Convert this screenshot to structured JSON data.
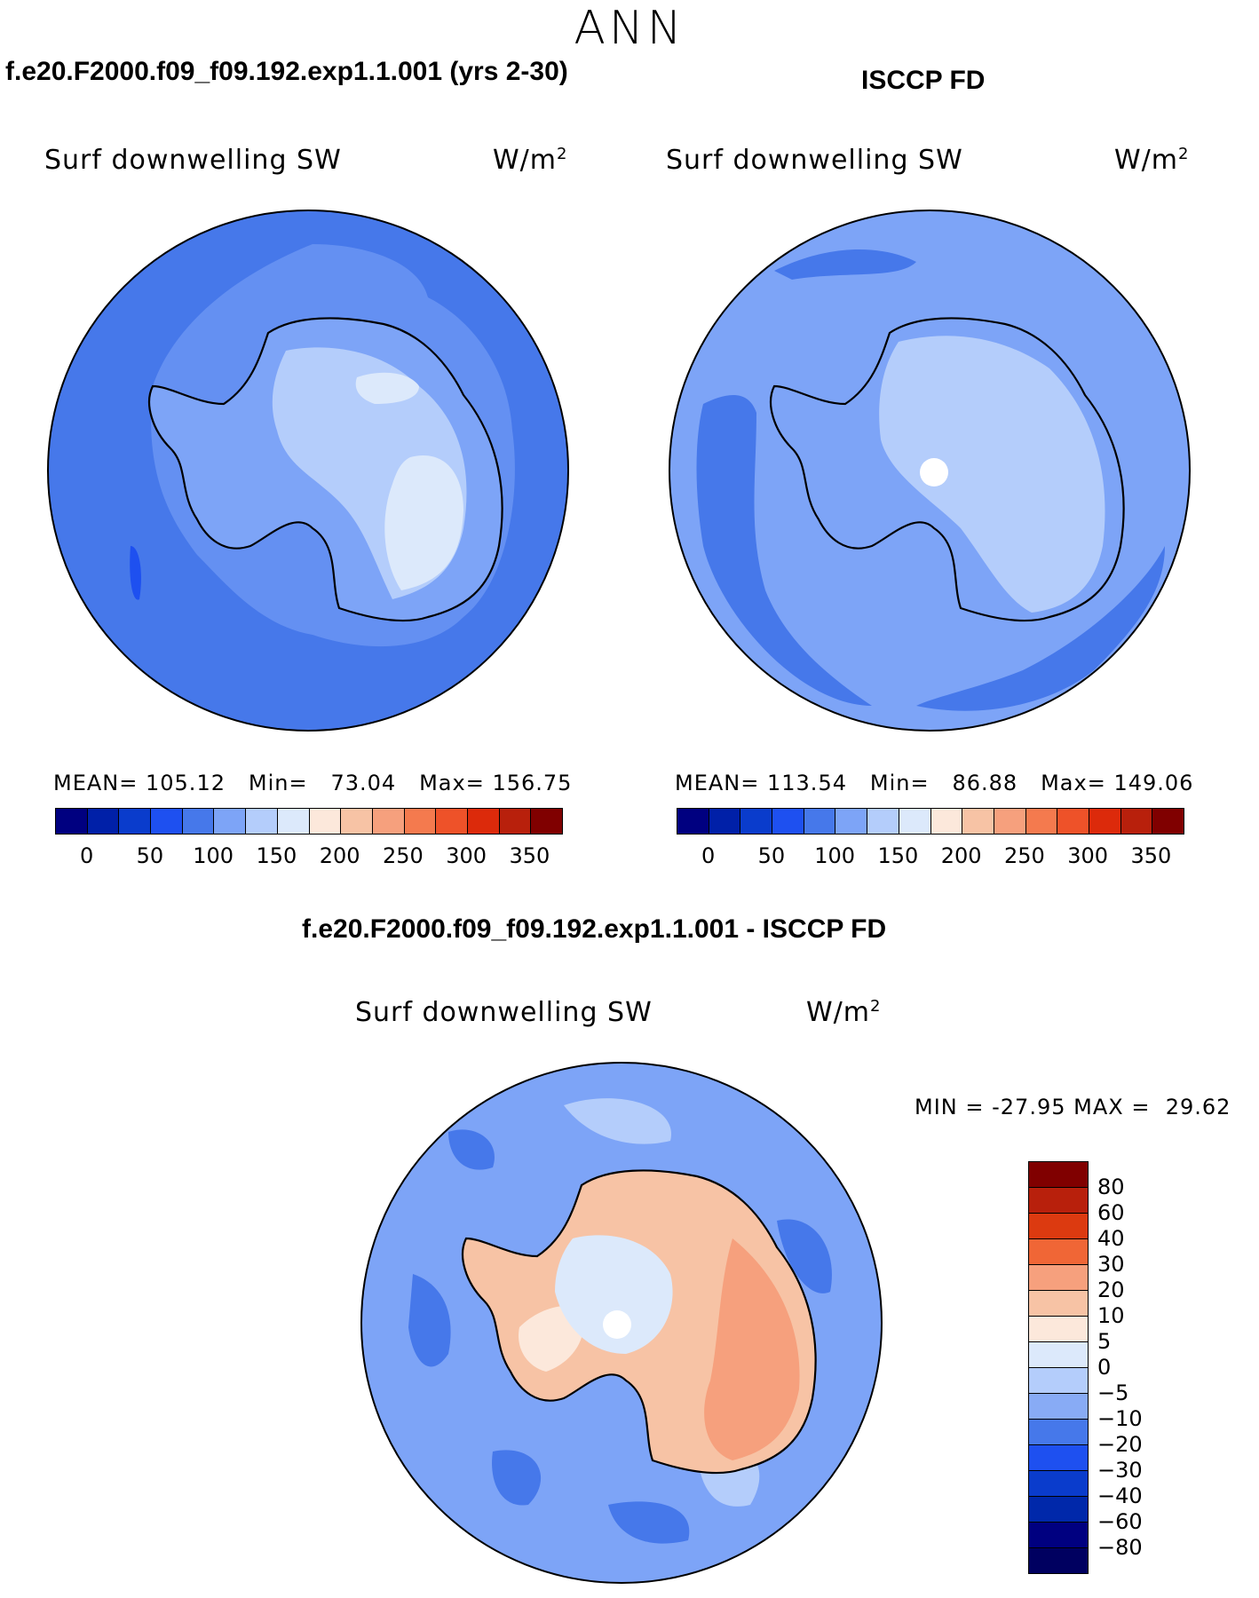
{
  "season": "ANN",
  "panels": {
    "model": {
      "title": "f.e20.F2000.f09_f09.192.exp1.1.001 (yrs 2-30)",
      "variable": "Surf downwelling SW",
      "units": "W/m",
      "units_exp": "2",
      "mean_label": "MEAN=",
      "mean": "105.12",
      "min_label": "Min=",
      "min": "73.04",
      "max_label": "Max=",
      "max": "156.75"
    },
    "obs": {
      "title": "ISCCP FD",
      "variable": "Surf downwelling SW",
      "units": "W/m",
      "units_exp": "2",
      "mean_label": "MEAN=",
      "mean": "113.54",
      "min_label": "Min=",
      "min": "86.88",
      "max_label": "Max=",
      "max": "149.06"
    },
    "diff": {
      "title": "f.e20.F2000.f09_f09.192.exp1.1.001 - ISCCP FD",
      "variable": "Surf downwelling SW",
      "units": "W/m",
      "units_exp": "2",
      "min_label": "MIN =",
      "min": "-27.95",
      "max_label": "MAX =",
      "max": "29.62"
    }
  },
  "colorbar_abs": {
    "colors": [
      "#000080",
      "#0020a8",
      "#0a3ccc",
      "#1e50f0",
      "#4678ea",
      "#7da4f7",
      "#b4cdfb",
      "#dce9fb",
      "#fce8db",
      "#f7c3a5",
      "#f6a07d",
      "#f47a4e",
      "#ee5229",
      "#dc2a0b",
      "#b8200c",
      "#800000"
    ],
    "ticks": [
      "0",
      "50",
      "100",
      "150",
      "200",
      "250",
      "300",
      "350"
    ]
  },
  "colorbar_diff": {
    "colors": [
      "#800000",
      "#b8200c",
      "#dc3a10",
      "#f06636",
      "#f6a07d",
      "#f7c3a5",
      "#fce8db",
      "#dce9fb",
      "#b4cdfb",
      "#88abf5",
      "#4678ea",
      "#1e50f0",
      "#0a3ccc",
      "#0028aa",
      "#000080"
    ],
    "ticks": [
      "80",
      "60",
      "40",
      "30",
      "20",
      "10",
      "5",
      "0",
      "−5",
      "−10",
      "−20",
      "−30",
      "−40",
      "−60",
      "−80"
    ]
  },
  "map_colors": {
    "ocean_model": "#4678ea",
    "ocean_obs": "#7da4f7",
    "ocean_diff": "#7da4f7",
    "land_low": "#7da4f7",
    "land_mid": "#b4cdfb",
    "land_high": "#dce9fb",
    "diff_warm_1": "#fce8db",
    "diff_warm_2": "#f7c3a5",
    "diff_warm_3": "#f6a07d",
    "diff_cool": "#b4cdfb",
    "diff_dark": "#4678ea"
  }
}
